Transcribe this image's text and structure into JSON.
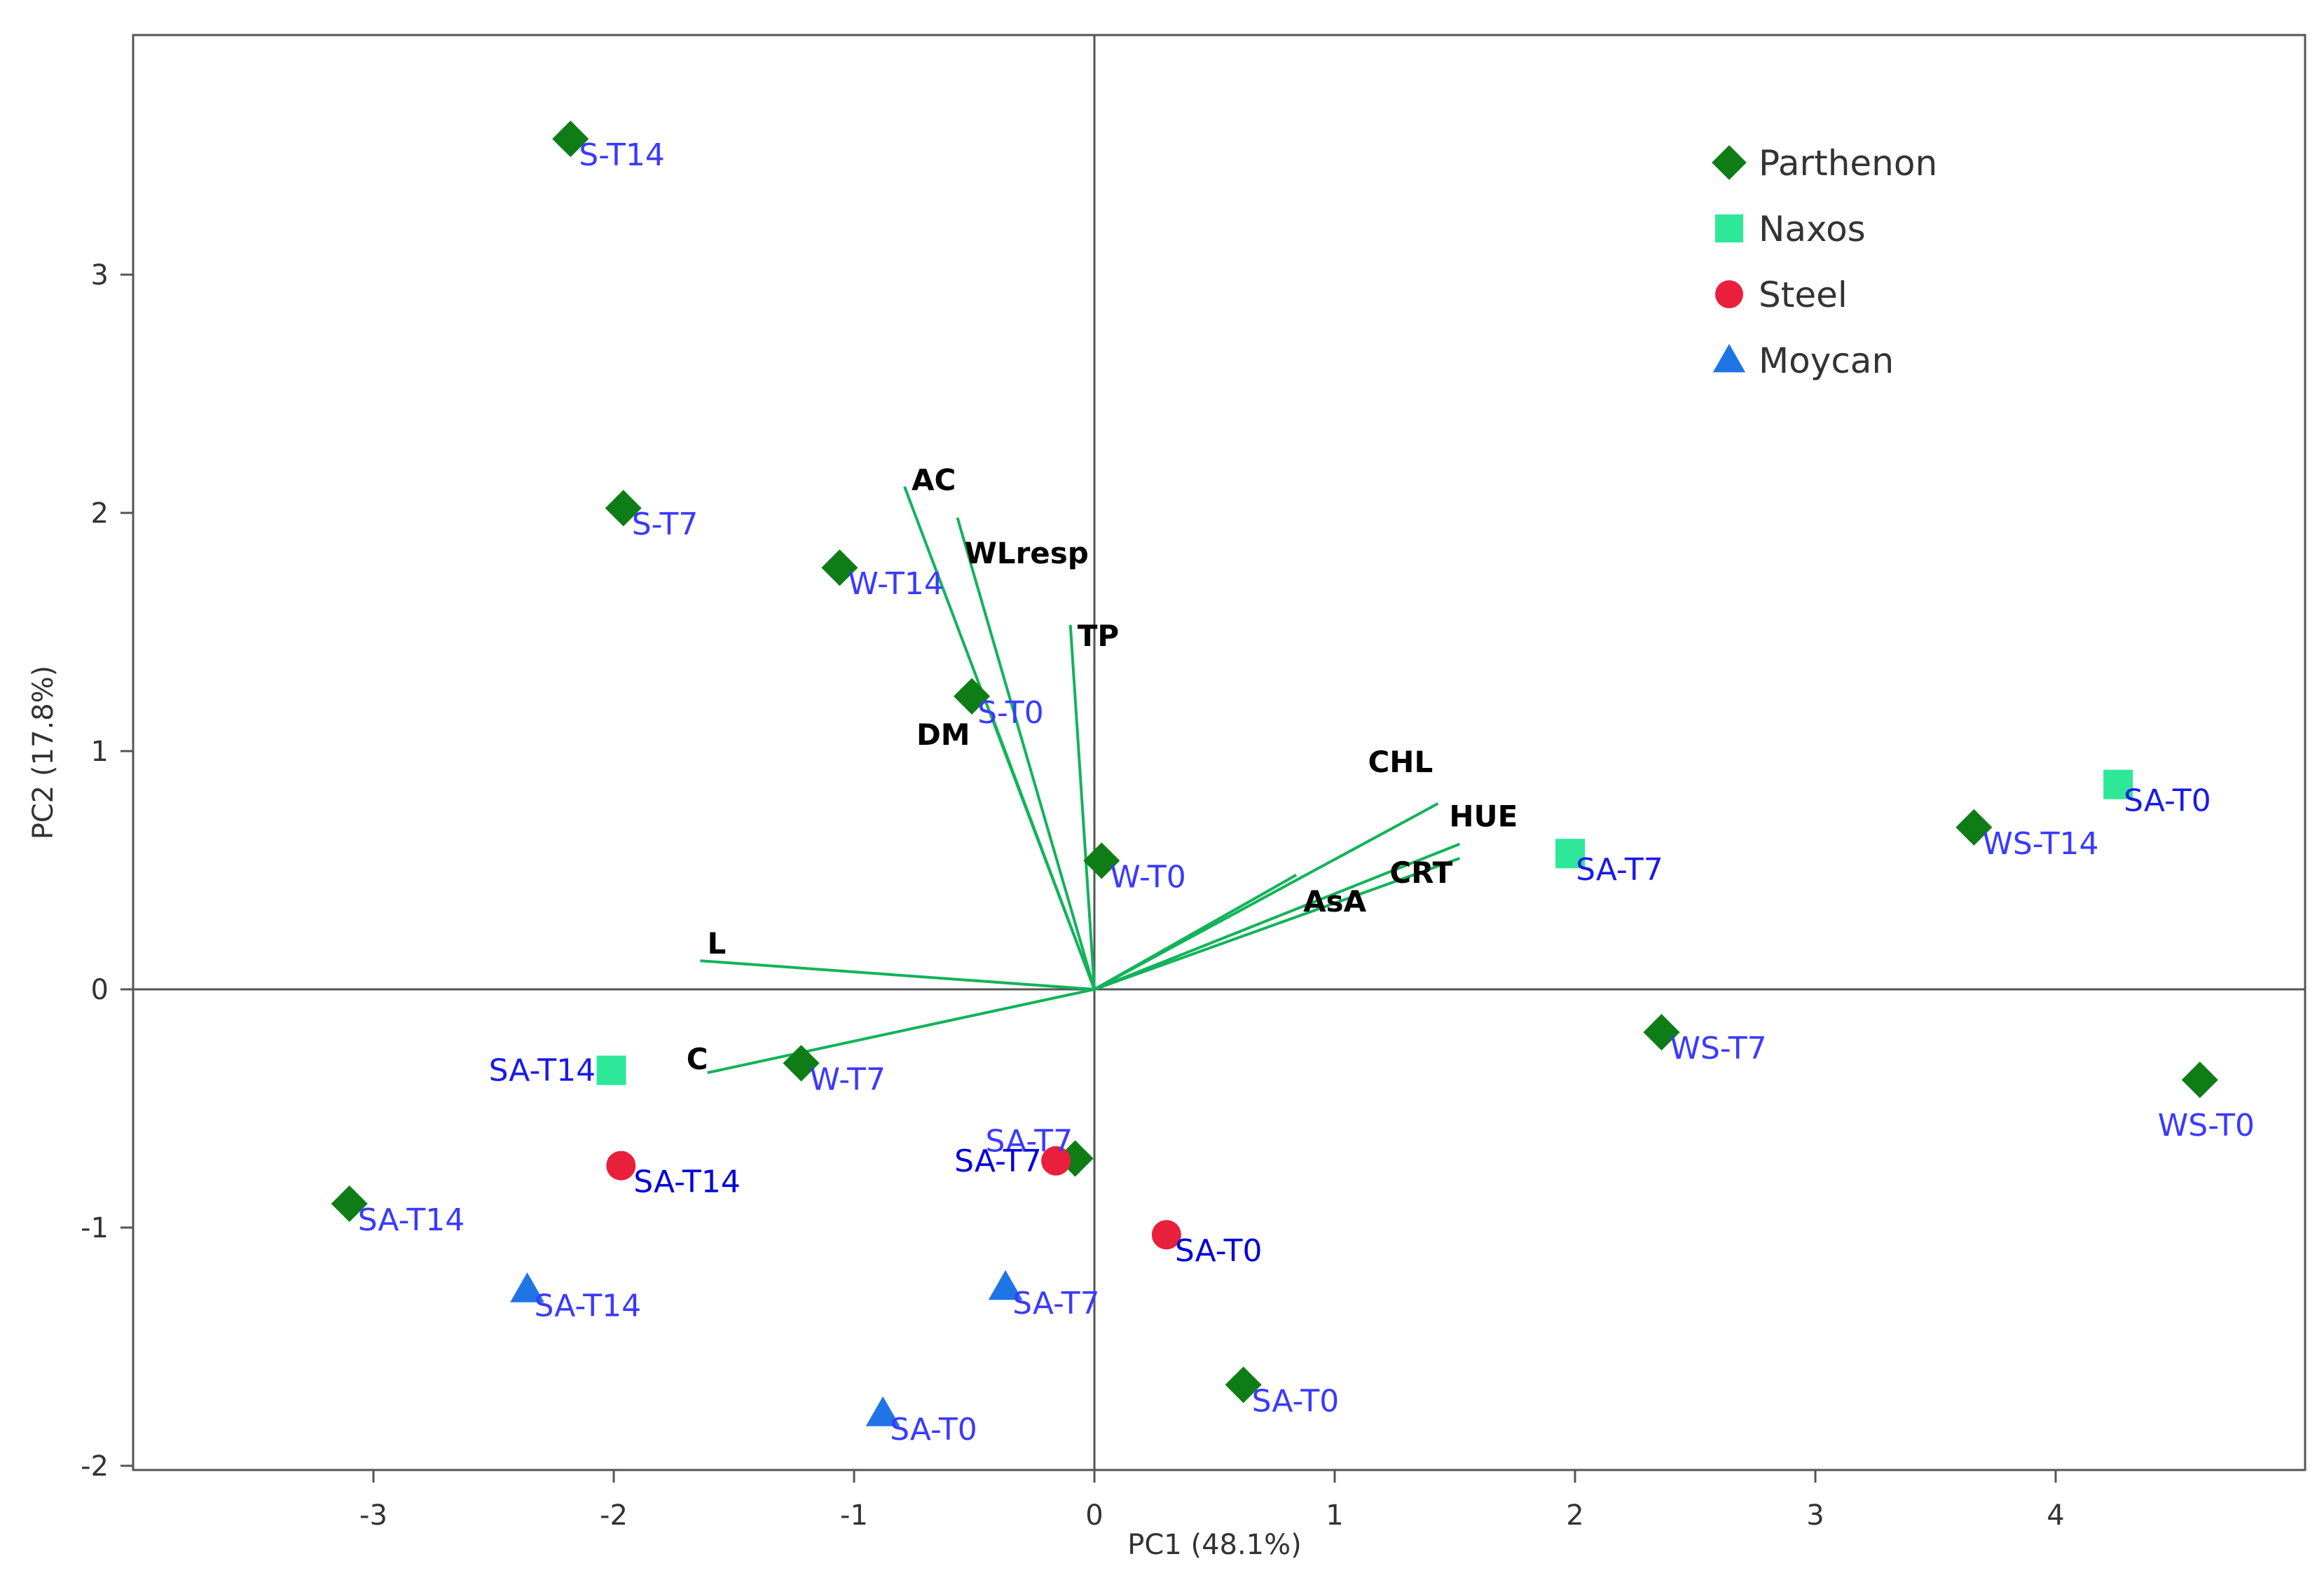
{
  "chart_data": {
    "type": "scatter",
    "subtype": "pca-biplot",
    "title": "",
    "xlabel": "PC1 (48.1%)",
    "ylabel": "PC2 (17.8%)",
    "xlim": [
      -4.0,
      4.9
    ],
    "ylim": [
      -2.0,
      4.0
    ],
    "xticks": [
      -3,
      -2,
      -1,
      0,
      1,
      2,
      3,
      4
    ],
    "yticks": [
      -2,
      -1,
      0,
      1,
      2,
      3
    ],
    "grid": false,
    "legend_position": "top-right",
    "series": [
      {
        "name": "Parthenon",
        "marker": "diamond",
        "color": "#0e7d16",
        "label_color": "#3a3aff",
        "points": [
          {
            "label": "S-T14",
            "x": -2.18,
            "y": 3.57
          },
          {
            "label": "S-T7",
            "x": -1.96,
            "y": 2.02
          },
          {
            "label": "W-T14",
            "x": -1.06,
            "y": 1.77
          },
          {
            "label": "S-T0",
            "x": -0.51,
            "y": 1.23
          },
          {
            "label": "W-T0",
            "x": 0.03,
            "y": 0.54
          },
          {
            "label": "W-T7",
            "x": -1.22,
            "y": -0.31
          },
          {
            "label": "SA-T14",
            "x": -3.1,
            "y": -0.9
          },
          {
            "label": "SA-T7",
            "x": -0.08,
            "y": -0.71
          },
          {
            "label": "SA-T0",
            "x": 0.62,
            "y": -1.66
          },
          {
            "label": "WS-T14",
            "x": 3.66,
            "y": 0.68
          },
          {
            "label": "WS-T7",
            "x": 2.36,
            "y": -0.18
          },
          {
            "label": "WS-T0",
            "x": 4.6,
            "y": -0.38
          }
        ]
      },
      {
        "name": "Naxos",
        "marker": "square",
        "color": "#2ee89a",
        "label_color": "#1a1ae6",
        "points": [
          {
            "label": "SA-T0",
            "x": 4.26,
            "y": 0.86
          },
          {
            "label": "SA-T7",
            "x": 1.98,
            "y": 0.57
          },
          {
            "label": "SA-T14",
            "x": -2.01,
            "y": -0.34
          }
        ]
      },
      {
        "name": "Steel",
        "marker": "circle",
        "color": "#e8203c",
        "label_color": "#0000d8",
        "points": [
          {
            "label": "SA-T14",
            "x": -1.97,
            "y": -0.74
          },
          {
            "label": "SA-T7",
            "x": -0.16,
            "y": -0.72
          },
          {
            "label": "SA-T0",
            "x": 0.3,
            "y": -1.03
          }
        ]
      },
      {
        "name": "Moycan",
        "marker": "triangle",
        "color": "#1f74e6",
        "label_color": "#3a3aff",
        "points": [
          {
            "label": "SA-T14",
            "x": -2.36,
            "y": -1.26
          },
          {
            "label": "SA-T7",
            "x": -0.37,
            "y": -1.25
          },
          {
            "label": "SA-T0",
            "x": -0.88,
            "y": -1.78
          }
        ]
      }
    ],
    "loadings": [
      {
        "label": "AC",
        "x": -0.79,
        "y": 2.11
      },
      {
        "label": "WLresp",
        "x": -0.57,
        "y": 1.98
      },
      {
        "label": "TP",
        "x": -0.1,
        "y": 1.53
      },
      {
        "label": "DM",
        "x": -0.42,
        "y": 1.13
      },
      {
        "label": "L",
        "x": -1.64,
        "y": 0.12
      },
      {
        "label": "C",
        "x": -1.61,
        "y": -0.35
      },
      {
        "label": "CHL",
        "x": 1.43,
        "y": 0.78
      },
      {
        "label": "HUE",
        "x": 1.52,
        "y": 0.61
      },
      {
        "label": "CRT",
        "x": 1.52,
        "y": 0.55
      },
      {
        "label": "AsA",
        "x": 0.84,
        "y": 0.48
      }
    ],
    "loading_color": "#12b35a",
    "axis_color": "#555555"
  }
}
